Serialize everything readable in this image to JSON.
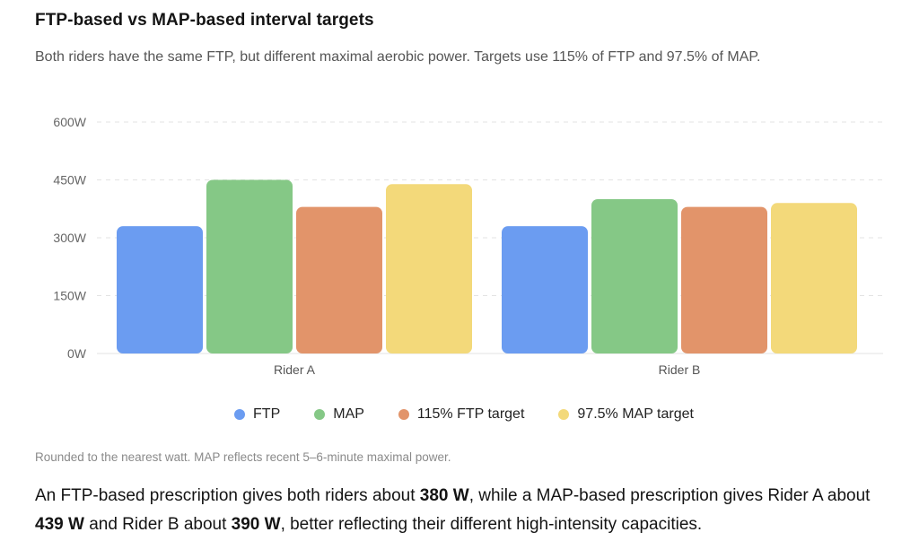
{
  "title": "FTP-based vs MAP-based interval targets",
  "subtitle": "Both riders have the same FTP, but different maximal aerobic power. Targets use 115% of FTP and 97.5% of MAP.",
  "footnote": "Rounded to the nearest watt. MAP reflects recent 5–6-minute maximal power.",
  "summary": {
    "p1": "An FTP-based prescription gives both riders about ",
    "b1": "380 W",
    "p2": ", while a MAP-based prescription gives Rider A about ",
    "b2": "439 W",
    "p3": " and Rider B about ",
    "b3": "390 W",
    "p4": ", better reflecting their different high-intensity capacities."
  },
  "chart_data": {
    "type": "bar",
    "title": "FTP-based vs MAP-based interval targets",
    "xlabel": "",
    "ylabel": "",
    "categories": [
      "Rider A",
      "Rider B"
    ],
    "ylim": [
      0,
      600
    ],
    "yticks": [
      0,
      150,
      300,
      450,
      600
    ],
    "ytick_labels": [
      "0W",
      "150W",
      "300W",
      "450W",
      "600W"
    ],
    "grid": true,
    "legend_position": "bottom",
    "series": [
      {
        "name": "FTP",
        "color": "#6b9cf1",
        "values": [
          330,
          330
        ]
      },
      {
        "name": "MAP",
        "color": "#85c886",
        "values": [
          450,
          400
        ]
      },
      {
        "name": "115% FTP target",
        "color": "#e2946a",
        "values": [
          380,
          380
        ]
      },
      {
        "name": "97.5% MAP target",
        "color": "#f3d97a",
        "values": [
          439,
          390
        ]
      }
    ]
  }
}
